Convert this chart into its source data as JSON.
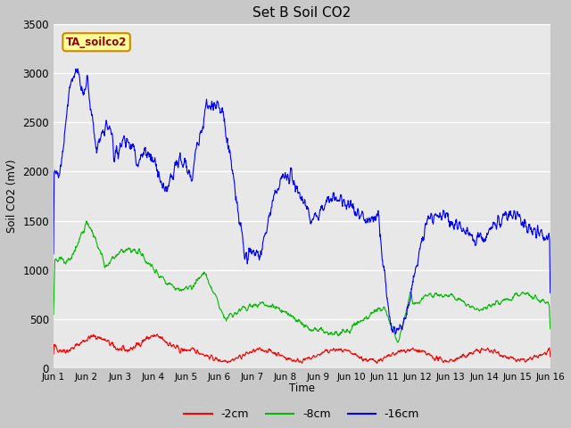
{
  "title": "Set B Soil CO2",
  "ylabel": "Soil CO2 (mV)",
  "xlabel": "Time",
  "annotation": "TA_soilco2",
  "ylim": [
    0,
    3500
  ],
  "xlim": [
    1,
    16
  ],
  "xtick_labels": [
    "Jun 1",
    "Jun 2",
    "Jun 3",
    "Jun 4",
    "Jun 5",
    "Jun 6",
    "Jun 7",
    "Jun 8",
    "Jun 9",
    "Jun 10",
    "Jun 11",
    "Jun 12",
    "Jun 13",
    "Jun 14",
    "Jun 15",
    "Jun 16"
  ],
  "xtick_positions": [
    1,
    2,
    3,
    4,
    5,
    6,
    7,
    8,
    9,
    10,
    11,
    12,
    13,
    14,
    15,
    16
  ],
  "ytick_positions": [
    0,
    500,
    1000,
    1500,
    2000,
    2500,
    3000,
    3500
  ],
  "colors": {
    "red": "#ff0000",
    "green": "#00bb00",
    "blue": "#0000ff",
    "fig_bg": "#c8c8c8",
    "plot_bg": "#e8e8e8",
    "annotation_bg": "#ffff99",
    "annotation_border": "#cc8800"
  },
  "legend": [
    {
      "label": "-2cm",
      "color": "#ff0000"
    },
    {
      "label": "-8cm",
      "color": "#00bb00"
    },
    {
      "label": "-16cm",
      "color": "#0000ff"
    }
  ]
}
